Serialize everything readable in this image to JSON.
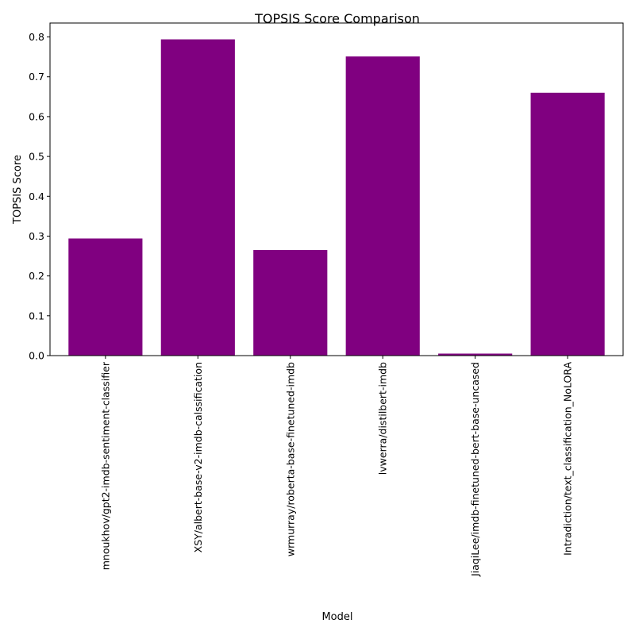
{
  "chart_data": {
    "type": "bar",
    "title": "TOPSIS Score Comparison",
    "xlabel": "Model",
    "ylabel": "TOPSIS Score",
    "categories": [
      "mnoukhov/gpt2-imdb-sentiment-classifier",
      "XSY/albert-base-v2-imdb-calssification",
      "wrmurray/roberta-base-finetuned-imdb",
      "lvwerra/distilbert-imdb",
      "JiaqiLee/imdb-finetuned-bert-base-uncased",
      "Intradiction/text_classification_NoLORA"
    ],
    "values": [
      0.294,
      0.794,
      0.265,
      0.751,
      0.005,
      0.66
    ],
    "ylim": [
      0,
      0.835
    ],
    "yticks": [
      "0.0",
      "0.1",
      "0.2",
      "0.3",
      "0.4",
      "0.5",
      "0.6",
      "0.7",
      "0.8"
    ],
    "bar_color": "#800080",
    "grid": false,
    "legend": "none"
  }
}
